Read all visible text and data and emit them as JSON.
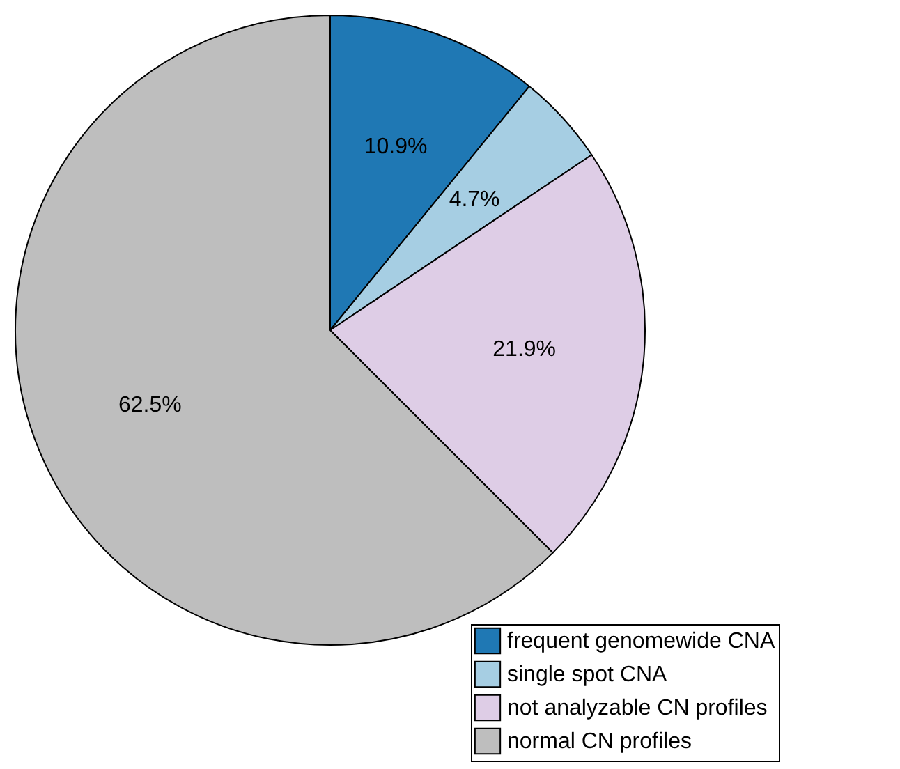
{
  "chart_data": {
    "type": "pie",
    "categories": [
      "frequent genomewide CNA",
      "single spot CNA",
      "not analyzable CN profiles",
      "normal CN profiles"
    ],
    "values": [
      10.9,
      4.7,
      21.9,
      62.5
    ],
    "colors": [
      "#1f78b4",
      "#a6cee3",
      "#decde6",
      "#bebebe"
    ],
    "value_labels": [
      "10.9%",
      "4.7%",
      "21.9%",
      "62.5%"
    ],
    "legend": "bottom right"
  }
}
